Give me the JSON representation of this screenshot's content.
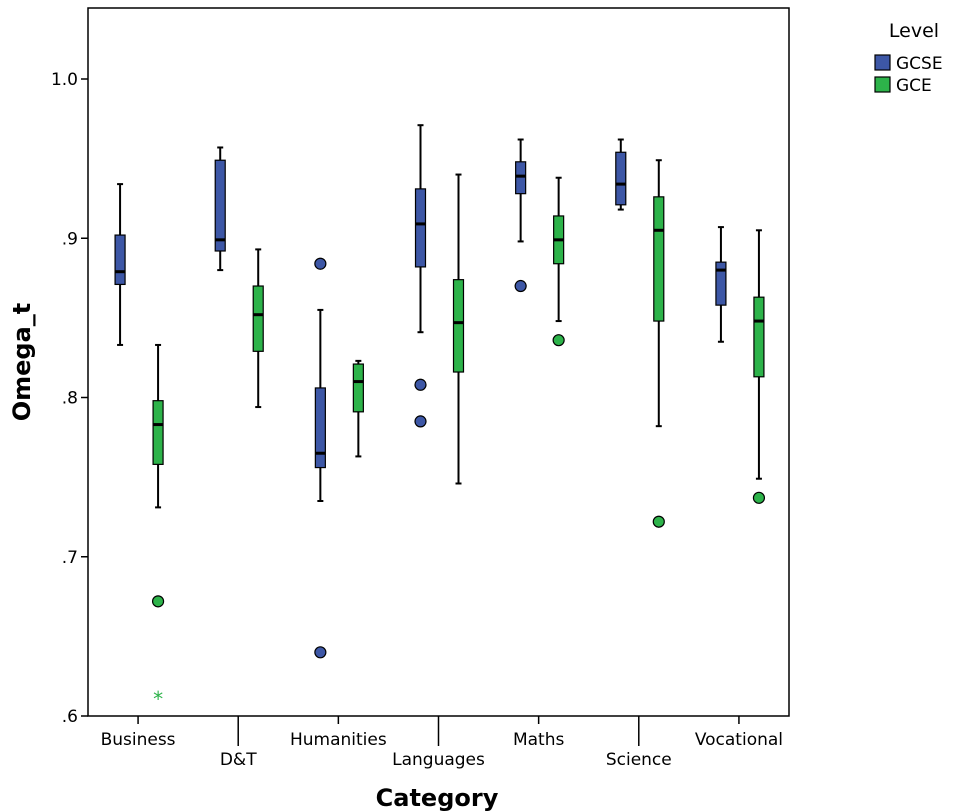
{
  "chart_data": {
    "type": "boxplot",
    "xlabel": "Category",
    "ylabel": "Omega_t",
    "ylim": [
      0.6,
      1.04
    ],
    "yticks": [
      1.0,
      0.9,
      0.8,
      0.7,
      0.6
    ],
    "ytick_labels": [
      "1.0",
      ".9",
      ".8",
      ".7",
      ".6"
    ],
    "categories": [
      "Business",
      "D&T",
      "Humanities",
      "Languages",
      "Maths",
      "Science",
      "Vocational"
    ],
    "legend": {
      "title": "Level",
      "position": "top-right"
    },
    "series": [
      {
        "name": "GCSE",
        "color": "#3d57a6",
        "boxes": [
          {
            "whisker_low": 0.833,
            "q1": 0.871,
            "median": 0.879,
            "q3": 0.902,
            "whisker_high": 0.934,
            "outliers": [],
            "extremes": []
          },
          {
            "whisker_low": 0.88,
            "q1": 0.892,
            "median": 0.899,
            "q3": 0.949,
            "whisker_high": 0.957,
            "outliers": [],
            "extremes": []
          },
          {
            "whisker_low": 0.735,
            "q1": 0.756,
            "median": 0.765,
            "q3": 0.806,
            "whisker_high": 0.855,
            "outliers": [
              0.884,
              0.64
            ],
            "extremes": []
          },
          {
            "whisker_low": 0.841,
            "q1": 0.882,
            "median": 0.909,
            "q3": 0.931,
            "whisker_high": 0.971,
            "outliers": [
              0.808,
              0.785
            ],
            "extremes": []
          },
          {
            "whisker_low": 0.898,
            "q1": 0.928,
            "median": 0.939,
            "q3": 0.948,
            "whisker_high": 0.962,
            "outliers": [
              0.87
            ],
            "extremes": []
          },
          {
            "whisker_low": 0.918,
            "q1": 0.921,
            "median": 0.934,
            "q3": 0.954,
            "whisker_high": 0.962,
            "outliers": [],
            "extremes": []
          },
          {
            "whisker_low": 0.835,
            "q1": 0.858,
            "median": 0.88,
            "q3": 0.885,
            "whisker_high": 0.907,
            "outliers": [],
            "extremes": []
          }
        ]
      },
      {
        "name": "GCE",
        "color": "#2db34a",
        "boxes": [
          {
            "whisker_low": 0.731,
            "q1": 0.758,
            "median": 0.783,
            "q3": 0.798,
            "whisker_high": 0.833,
            "outliers": [
              0.672
            ],
            "extremes": [
              0.612
            ]
          },
          {
            "whisker_low": 0.794,
            "q1": 0.829,
            "median": 0.852,
            "q3": 0.87,
            "whisker_high": 0.893,
            "outliers": [],
            "extremes": []
          },
          {
            "whisker_low": 0.763,
            "q1": 0.791,
            "median": 0.81,
            "q3": 0.821,
            "whisker_high": 0.823,
            "outliers": [],
            "extremes": []
          },
          {
            "whisker_low": 0.746,
            "q1": 0.816,
            "median": 0.847,
            "q3": 0.874,
            "whisker_high": 0.94,
            "outliers": [],
            "extremes": []
          },
          {
            "whisker_low": 0.848,
            "q1": 0.884,
            "median": 0.899,
            "q3": 0.914,
            "whisker_high": 0.938,
            "outliers": [
              0.836
            ],
            "extremes": []
          },
          {
            "whisker_low": 0.782,
            "q1": 0.848,
            "median": 0.905,
            "q3": 0.926,
            "whisker_high": 0.949,
            "outliers": [
              0.722
            ],
            "extremes": []
          },
          {
            "whisker_low": 0.749,
            "q1": 0.813,
            "median": 0.848,
            "q3": 0.863,
            "whisker_high": 0.905,
            "outliers": [
              0.737
            ],
            "extremes": []
          }
        ]
      }
    ]
  }
}
